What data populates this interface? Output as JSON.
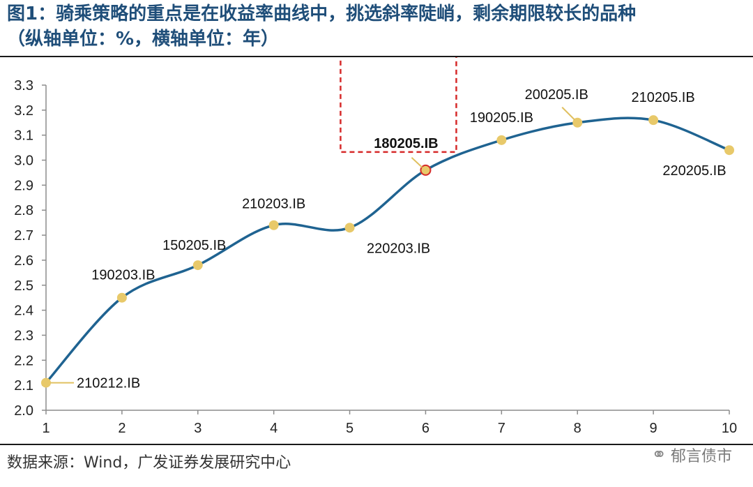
{
  "header": {
    "title_line1": "图1：骑乘策略的重点是在收益率曲线中，挑选斜率陡峭，剩余期限较长的品种",
    "title_line2": "（纵轴单位：%，横轴单位：年）"
  },
  "footer": {
    "source": "数据来源：Wind，广发证券发展研究中心",
    "watermark": "郁言债市",
    "watermark_icon": "wechat-icon"
  },
  "chart_data": {
    "type": "line",
    "title": "",
    "xlabel": "",
    "ylabel": "",
    "x": [
      1,
      2,
      3,
      4,
      5,
      6,
      7,
      8,
      9,
      10
    ],
    "xlim": [
      1,
      10
    ],
    "ylim": [
      2.0,
      3.3
    ],
    "xticks": [
      "1",
      "2",
      "3",
      "4",
      "5",
      "6",
      "7",
      "8",
      "9",
      "10"
    ],
    "yticks": [
      "2.0",
      "2.1",
      "2.2",
      "2.3",
      "2.4",
      "2.5",
      "2.6",
      "2.7",
      "2.8",
      "2.9",
      "3.0",
      "3.1",
      "3.2",
      "3.3"
    ],
    "grid": false,
    "series": [
      {
        "values": [
          2.11,
          2.45,
          2.58,
          2.74,
          2.73,
          2.96,
          3.08,
          3.15,
          3.16,
          3.04
        ],
        "color": "#1f6391"
      }
    ],
    "point_labels": [
      "210212.IB",
      "190203.IB",
      "150205.IB",
      "210203.IB",
      "220203.IB",
      "180205.IB",
      "190205.IB",
      "200205.IB",
      "210205.IB",
      "220205.IB"
    ],
    "highlight_index": 5,
    "colors": {
      "line": "#1f6391",
      "marker": "#e8c96a",
      "highlight_marker": "#e8c96a",
      "highlight_ring": "#d62a2a",
      "highlight_box": "#d62a2a",
      "leader": "#e0c060"
    }
  }
}
